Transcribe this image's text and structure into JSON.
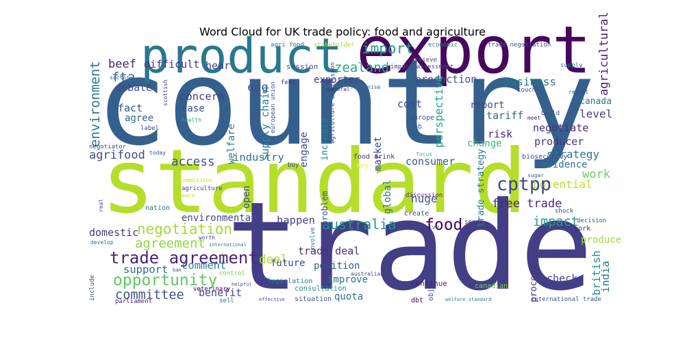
{
  "chart_data": {
    "type": "wordcloud",
    "title": "Word Cloud for UK trade policy: food and agriculture",
    "words": [
      {
        "text": "country",
        "color": "#35608d"
      },
      {
        "text": "standard",
        "color": "#b5de2b"
      },
      {
        "text": "trade",
        "color": "#433e85"
      },
      {
        "text": "export",
        "color": "#46085c"
      },
      {
        "text": "product",
        "color": "#2a788e"
      },
      {
        "text": "trade agreement",
        "color": "#482576"
      },
      {
        "text": "opportunity",
        "color": "#5ec962"
      },
      {
        "text": "negotiation",
        "color": "#a5db36"
      },
      {
        "text": "agreement",
        "color": "#90d743"
      },
      {
        "text": "committee",
        "color": "#3b528b"
      },
      {
        "text": "support",
        "color": "#31688e"
      },
      {
        "text": "comment",
        "color": "#26828e"
      },
      {
        "text": "benefit",
        "color": "#3e4989"
      },
      {
        "text": "deal",
        "color": "#addc30"
      },
      {
        "text": "trade deal",
        "color": "#472d7b"
      },
      {
        "text": "future",
        "color": "#3e4a89"
      },
      {
        "text": "position",
        "color": "#38588c"
      },
      {
        "text": "improve",
        "color": "#2c728e"
      },
      {
        "text": "quota",
        "color": "#2c728e"
      },
      {
        "text": "consultation",
        "color": "#21918c"
      },
      {
        "text": "australia",
        "color": "#21918c"
      },
      {
        "text": "happen",
        "color": "#414487"
      },
      {
        "text": "food",
        "color": "#440154"
      },
      {
        "text": "impact",
        "color": "#1f9e89"
      },
      {
        "text": "free trade",
        "color": "#482878"
      },
      {
        "text": "potential",
        "color": "#b8de29"
      },
      {
        "text": "work",
        "color": "#6ece58"
      },
      {
        "text": "cptpp",
        "color": "#3e4989"
      },
      {
        "text": "evidence",
        "color": "#2d708e"
      },
      {
        "text": "strategy",
        "color": "#2a788e"
      },
      {
        "text": "producer",
        "color": "#46337f"
      },
      {
        "text": "negotiate",
        "color": "#482878"
      },
      {
        "text": "level",
        "color": "#443a83"
      },
      {
        "text": "canada",
        "color": "#2c728e"
      },
      {
        "text": "business",
        "color": "#2a788e"
      },
      {
        "text": "production",
        "color": "#3b528b"
      },
      {
        "text": "report",
        "color": "#3f4788"
      },
      {
        "text": "tariff",
        "color": "#31688e"
      },
      {
        "text": "risk",
        "color": "#482475"
      },
      {
        "text": "change",
        "color": "#35b779"
      },
      {
        "text": "huge",
        "color": "#3b528b"
      },
      {
        "text": "global",
        "color": "#2e6f8e"
      },
      {
        "text": "market",
        "color": "#404688"
      },
      {
        "text": "consumer",
        "color": "#38588c"
      },
      {
        "text": "import",
        "color": "#1f9e89"
      },
      {
        "text": "zealand",
        "color": "#22a785"
      },
      {
        "text": "exporter",
        "color": "#453781"
      },
      {
        "text": "cost",
        "color": "#3f4788"
      },
      {
        "text": "industry",
        "color": "#2c728e"
      },
      {
        "text": "access",
        "color": "#3b528b"
      },
      {
        "text": "agrifood",
        "color": "#3e4a89"
      },
      {
        "text": "fact",
        "color": "#3a548c"
      },
      {
        "text": "agree",
        "color": "#33638d"
      },
      {
        "text": "case",
        "color": "#3e4989"
      },
      {
        "text": "concern",
        "color": "#443983"
      },
      {
        "text": "egg",
        "color": "#3b528b"
      },
      {
        "text": "debate",
        "color": "#3f4788"
      },
      {
        "text": "fta",
        "color": "#31688e"
      },
      {
        "text": "beef",
        "color": "#482475"
      },
      {
        "text": "difficult",
        "color": "#46307e"
      },
      {
        "text": "hear",
        "color": "#414487"
      },
      {
        "text": "environmental",
        "color": "#3f4788"
      },
      {
        "text": "domestic",
        "color": "#453882"
      },
      {
        "text": "open",
        "color": "#3e4a89"
      },
      {
        "text": "welfare",
        "color": "#287d8e"
      },
      {
        "text": "supply chain",
        "color": "#26828e"
      },
      {
        "text": "engage",
        "color": "#3e4989"
      },
      {
        "text": "increase",
        "color": "#287c8e"
      },
      {
        "text": "problem",
        "color": "#3b528b"
      },
      {
        "text": "environment",
        "color": "#2a788e"
      },
      {
        "text": "agricultural",
        "color": "#481f70"
      },
      {
        "text": "british",
        "color": "#21918c"
      },
      {
        "text": "india",
        "color": "#2d708e"
      },
      {
        "text": "process",
        "color": "#472f7d"
      },
      {
        "text": "trade strategy",
        "color": "#2a788e"
      },
      {
        "text": "perspective",
        "color": "#1fa188"
      },
      {
        "text": "produce",
        "color": "#a0da39"
      },
      {
        "text": "check",
        "color": "#414487"
      },
      {
        "text": "sector",
        "color": "#31688e"
      },
      {
        "text": "parliament",
        "color": "#482475"
      },
      {
        "text": "international trade",
        "color": "#3b528b"
      },
      {
        "text": "welfare standard",
        "color": "#2a788e"
      },
      {
        "text": "agriculture commission",
        "color": "#3e4989"
      },
      {
        "text": "food drink",
        "color": "#472d7b"
      },
      {
        "text": "biosecurity",
        "color": "#414487"
      },
      {
        "text": "sugar",
        "color": "#38598c"
      },
      {
        "text": "economic",
        "color": "#26828e"
      },
      {
        "text": "trade negotiation",
        "color": "#3b528b"
      },
      {
        "text": "impact assessment",
        "color": "#3e4989"
      },
      {
        "text": "stakeholder",
        "color": "#addc30"
      },
      {
        "text": "agri food",
        "color": "#2c728e"
      },
      {
        "text": "general",
        "color": "#46327e"
      },
      {
        "text": "session",
        "color": "#3f4788"
      },
      {
        "text": "feel",
        "color": "#482878"
      },
      {
        "text": "recognise",
        "color": "#31688e"
      },
      {
        "text": "achieve",
        "color": "#3b528b"
      },
      {
        "text": "continue",
        "color": "#481d6f"
      },
      {
        "text": "dbt",
        "color": "#440154"
      },
      {
        "text": "situation",
        "color": "#3b528b"
      },
      {
        "text": "sell",
        "color": "#31688e"
      },
      {
        "text": "effective",
        "color": "#3e4989"
      },
      {
        "text": "legislation",
        "color": "#2a788e"
      },
      {
        "text": "australian",
        "color": "#414487"
      },
      {
        "text": "objective",
        "color": "#3f4788"
      },
      {
        "text": "canadian",
        "color": "#7ad151"
      },
      {
        "text": "send",
        "color": "#453781"
      },
      {
        "text": "shock",
        "color": "#3e4989"
      },
      {
        "text": "decision",
        "color": "#3b528b"
      },
      {
        "text": "pork",
        "color": "#482878"
      },
      {
        "text": "create",
        "color": "#3f4788"
      },
      {
        "text": "discussion",
        "color": "#481f70"
      },
      {
        "text": "positive",
        "color": "#3e4989"
      },
      {
        "text": "key",
        "color": "#fde725"
      },
      {
        "text": "focus",
        "color": "#35b779"
      },
      {
        "text": "international",
        "color": "#2a788e"
      },
      {
        "text": "european union",
        "color": "#3b528b"
      },
      {
        "text": "scottish",
        "color": "#46307e"
      },
      {
        "text": "health",
        "color": "#22a785"
      },
      {
        "text": "label",
        "color": "#3e4a89"
      },
      {
        "text": "role",
        "color": "#3b528b"
      },
      {
        "text": "negotiator",
        "color": "#414487"
      },
      {
        "text": "today",
        "color": "#3b528b"
      },
      {
        "text": "commission",
        "color": "#c2df23"
      },
      {
        "text": "agriculture",
        "color": "#3e4989"
      },
      {
        "text": "aware",
        "color": "#bddf26"
      },
      {
        "text": "nation",
        "color": "#2c728e"
      },
      {
        "text": "real",
        "color": "#3e4989"
      },
      {
        "text": "develop",
        "color": "#31688e"
      },
      {
        "text": "include",
        "color": "#3b528b"
      },
      {
        "text": "control",
        "color": "#6ece58"
      },
      {
        "text": "ban",
        "color": "#414487"
      },
      {
        "text": "veterinary",
        "color": "#440154"
      },
      {
        "text": "helpful",
        "color": "#3b528b"
      },
      {
        "text": "worth",
        "color": "#3e4989"
      },
      {
        "text": "involve",
        "color": "#2a788e"
      },
      {
        "text": "buy",
        "color": "#3e4989"
      },
      {
        "text": "job",
        "color": "#35608d"
      },
      {
        "text": "europe",
        "color": "#3b528b"
      },
      {
        "text": "touch",
        "color": "#3f4788"
      },
      {
        "text": "result",
        "color": "#3e4989"
      },
      {
        "text": "supply",
        "color": "#2a788e"
      },
      {
        "text": "build",
        "color": "#3b528b"
      },
      {
        "text": "meet",
        "color": "#482475"
      },
      {
        "text": "chicken",
        "color": "#46327e"
      }
    ]
  }
}
